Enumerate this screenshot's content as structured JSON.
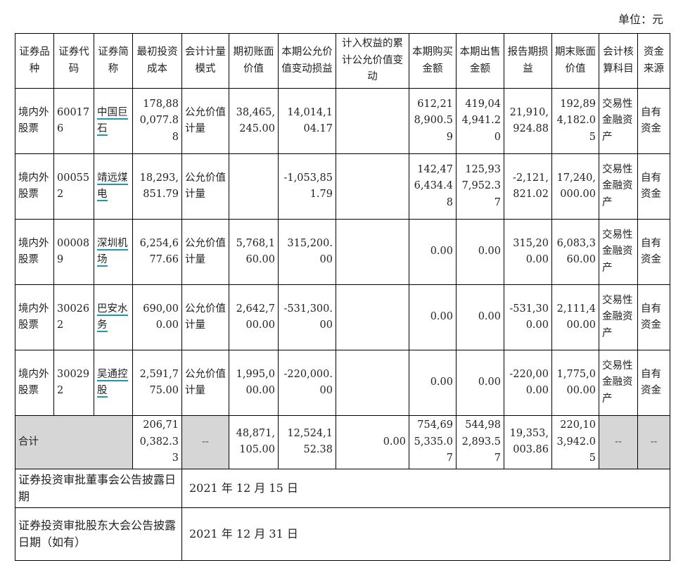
{
  "unit_label": "单位：元",
  "headers": [
    "证券品种",
    "证券代码",
    "证券简称",
    "最初投资成本",
    "会计计量模式",
    "期初账面价值",
    "本期公允价值变动损益",
    "计入权益的累计公允价值变动",
    "本期购买金额",
    "本期出售金额",
    "报告期损益",
    "期末账面价值",
    "会计核算科目",
    "资金来源"
  ],
  "rows": [
    {
      "type": "境内外股票",
      "code": "600176",
      "name": "中国巨石",
      "cost": "178,880,077.88",
      "mode": "公允价值计量",
      "open": "38,465,245.00",
      "fv_change": "14,014,104.17",
      "equity_fv": "",
      "buy": "612,218,900.59",
      "sell": "419,044,941.20",
      "pnl": "21,910,924.88",
      "close": "192,894,182.05",
      "account": "交易性金融资产",
      "source": "自有资金"
    },
    {
      "type": "境内外股票",
      "code": "000552",
      "name": "靖远煤电",
      "cost": "18,293,851.79",
      "mode": "公允价值计量",
      "open": "",
      "fv_change": "-1,053,851.79",
      "equity_fv": "",
      "buy": "142,476,434.48",
      "sell": "125,937,952.37",
      "pnl": "-2,121,821.02",
      "close": "17,240,000.00",
      "account": "交易性金融资产",
      "source": "自有资金"
    },
    {
      "type": "境内外股票",
      "code": "000089",
      "name": "深圳机场",
      "cost": "6,254,677.66",
      "mode": "公允价值计量",
      "open": "5,768,160.00",
      "fv_change": "315,200.00",
      "equity_fv": "",
      "buy": "0.00",
      "sell": "0.00",
      "pnl": "315,200.00",
      "close": "6,083,360.00",
      "account": "交易性金融资产",
      "source": "自有资金"
    },
    {
      "type": "境内外股票",
      "code": "300262",
      "name": "巴安水务",
      "cost": "690,000.00",
      "mode": "公允价值计量",
      "open": "2,642,700.00",
      "fv_change": "-531,300.00",
      "equity_fv": "",
      "buy": "0.00",
      "sell": "0.00",
      "pnl": "-531,300.00",
      "close": "2,111,400.00",
      "account": "交易性金融资产",
      "source": "自有资金"
    },
    {
      "type": "境内外股票",
      "code": "300292",
      "name": "吴通控股",
      "cost": "2,591,775.00",
      "mode": "公允价值计量",
      "open": "1,995,000.00",
      "fv_change": "-220,000.00",
      "equity_fv": "",
      "buy": "0.00",
      "sell": "0.00",
      "pnl": "-220,000.00",
      "close": "1,775,000.00",
      "account": "交易性金融资产",
      "source": "自有资金"
    }
  ],
  "total": {
    "label": "合计",
    "cost": "206,710,382.33",
    "mode": "--",
    "open": "48,871,105.00",
    "fv_change": "12,524,152.38",
    "equity_fv": "0.00",
    "buy": "754,695,335.07",
    "sell": "544,982,893.57",
    "pnl": "19,353,003.86",
    "close": "220,103,942.05",
    "account": "--",
    "source": "--"
  },
  "footer": [
    {
      "label": "证券投资审批董事会公告披露日期",
      "value": "2021 年 12 月 15 日"
    },
    {
      "label": "证券投资审批股东大会公告披露日期（如有）",
      "value": "2021 年 12 月 31 日"
    }
  ]
}
